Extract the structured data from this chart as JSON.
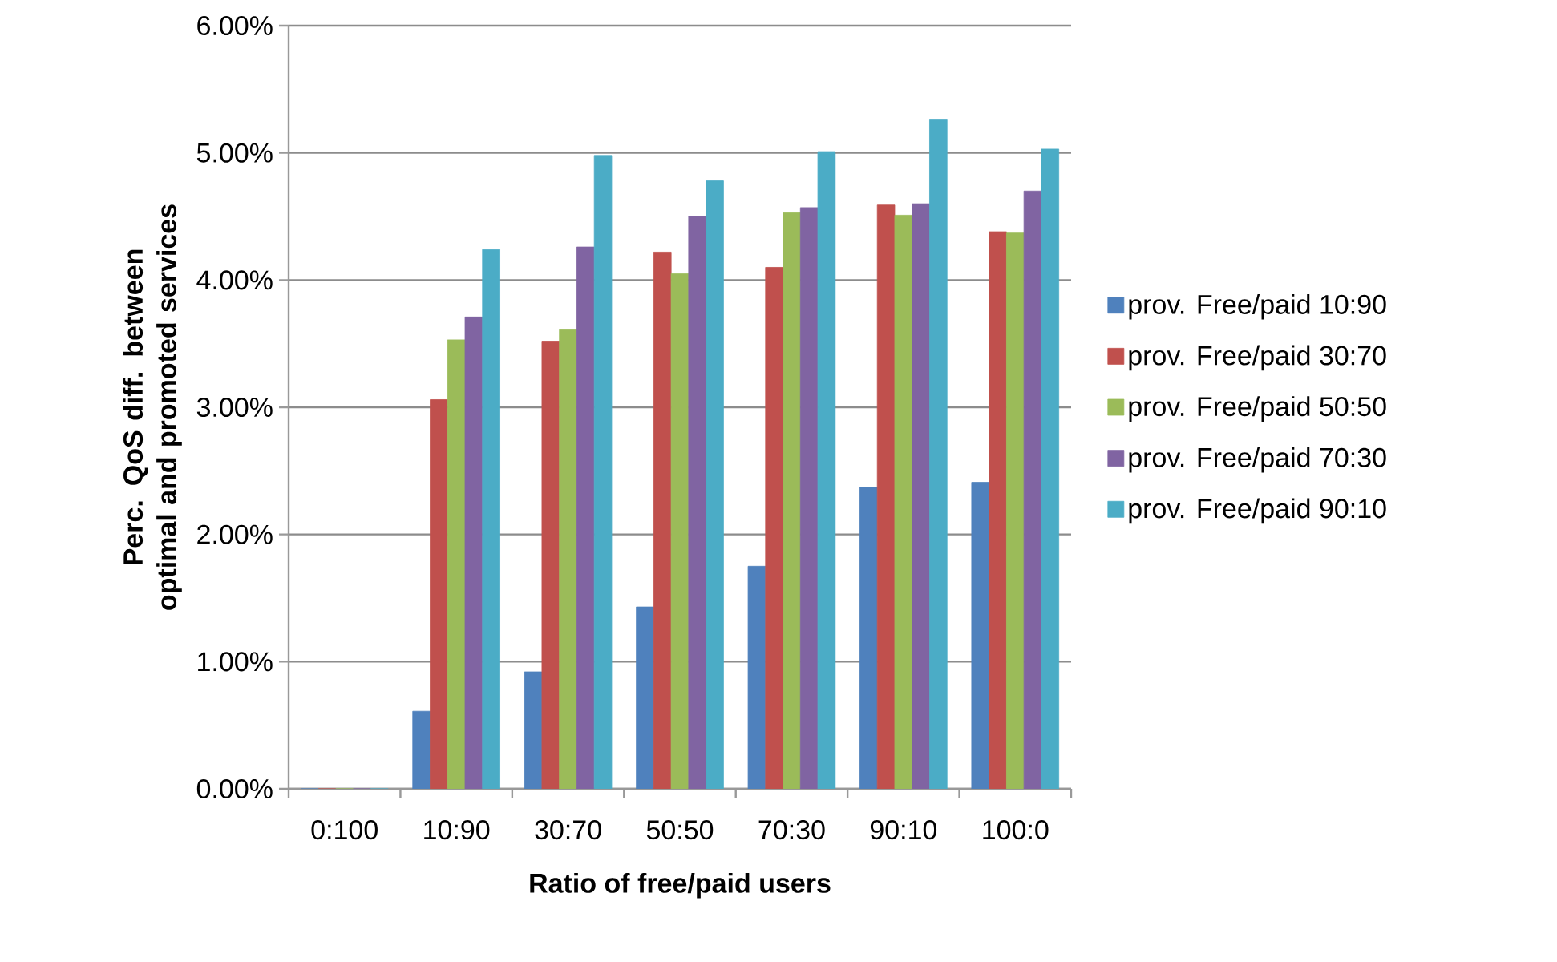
{
  "chart_data": {
    "type": "bar",
    "xlabel": "Ratio of free/paid users",
    "ylabel": "Perc. QoS diff. between optimal and promoted services",
    "categories": [
      "0:100",
      "10:90",
      "30:70",
      "50:50",
      "70:30",
      "90:10",
      "100:0"
    ],
    "series": [
      {
        "name": "prov. Free/paid 10:90",
        "color": "#4f81bd",
        "values": [
          0,
          0.61,
          0.92,
          1.43,
          1.75,
          2.37,
          2.41
        ]
      },
      {
        "name": "prov. Free/paid 30:70",
        "color": "#c0504d",
        "values": [
          0,
          3.06,
          3.52,
          4.22,
          4.1,
          4.59,
          4.38
        ]
      },
      {
        "name": "prov. Free/paid 50:50",
        "color": "#9bbb59",
        "values": [
          0,
          3.53,
          3.61,
          4.05,
          4.53,
          4.51,
          4.37
        ]
      },
      {
        "name": "prov. Free/paid 70:30",
        "color": "#8064a2",
        "values": [
          0,
          3.71,
          4.26,
          4.5,
          4.57,
          4.6,
          4.7
        ]
      },
      {
        "name": "prov. Free/paid 90:10",
        "color": "#4bacc6",
        "values": [
          0,
          4.24,
          4.98,
          4.78,
          5.01,
          5.26,
          5.03
        ]
      }
    ],
    "ylim": [
      0,
      6
    ],
    "yticks": [
      {
        "value": 0,
        "label": "0.00%"
      },
      {
        "value": 1,
        "label": "1.00%"
      },
      {
        "value": 2,
        "label": "2.00%"
      },
      {
        "value": 3,
        "label": "3.00%"
      },
      {
        "value": 4,
        "label": "4.00%"
      },
      {
        "value": 5,
        "label": "5.00%"
      },
      {
        "value": 6,
        "label": "6.00%"
      }
    ],
    "grid": "y",
    "legend": "right"
  }
}
